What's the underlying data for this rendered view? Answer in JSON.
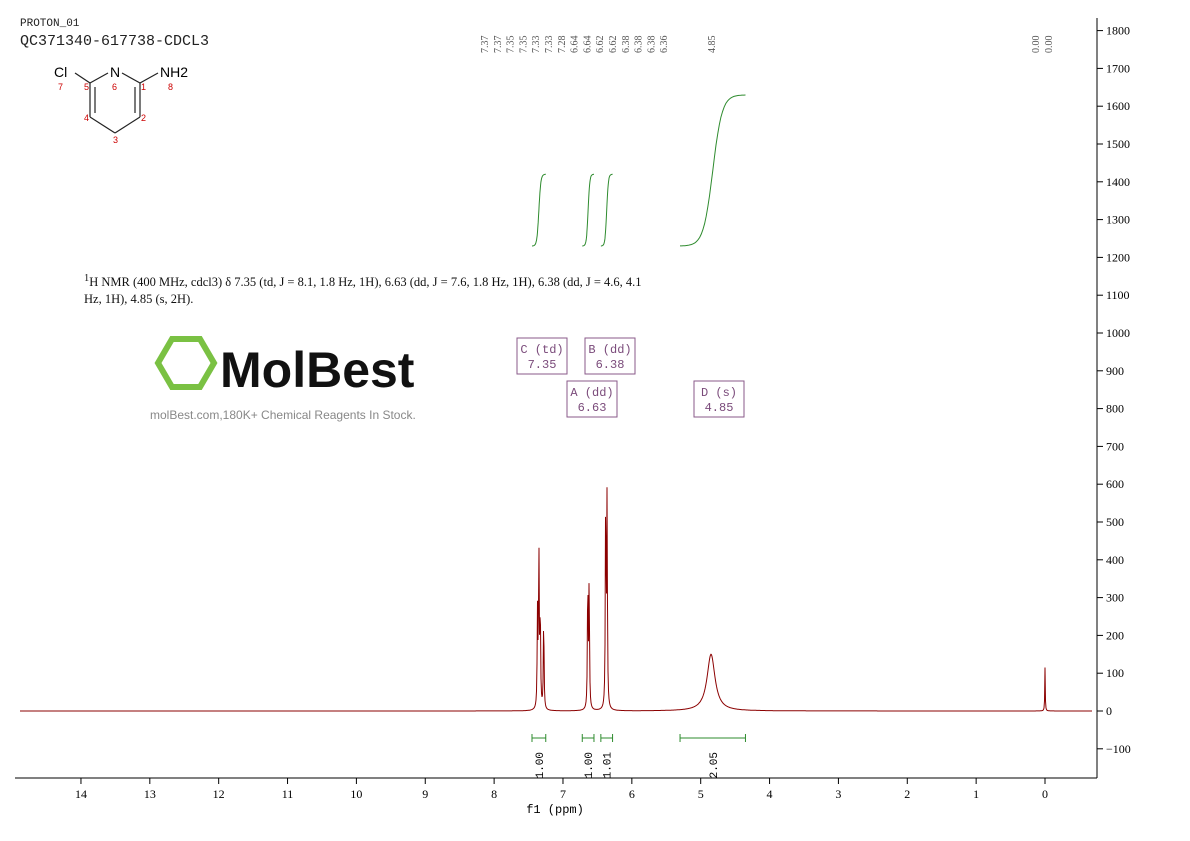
{
  "header": {
    "experiment": "PROTON_01",
    "sample": "QC371340-617738-CDCL3"
  },
  "structure": {
    "atoms": [
      {
        "label": "Cl",
        "num": "7"
      },
      {
        "label": "N",
        "num": "6"
      },
      {
        "label": "NH2",
        "num": "8"
      },
      {
        "num": "5"
      },
      {
        "num": "1"
      },
      {
        "num": "4"
      },
      {
        "num": "2"
      },
      {
        "num": "3"
      }
    ]
  },
  "description": {
    "sup": "1",
    "text": "H NMR (400 MHz, cdcl3) δ 7.35 (td, J = 8.1, 1.8 Hz, 1H), 6.63 (dd, J = 7.6, 1.8 Hz, 1H), 6.38 (dd, J = 4.6, 4.1 Hz, 1H), 4.85 (s, 2H)."
  },
  "watermark": {
    "brand": "MolBest",
    "tagline": "molBest.com,180K+ Chemical Reagents In Stock."
  },
  "chart_data": {
    "type": "line",
    "xlabel": "f1 (ppm)",
    "xlim": [
      14.9,
      -0.7
    ],
    "ylim": [
      -180,
      1830
    ],
    "xticks": [
      14,
      13,
      12,
      11,
      10,
      9,
      8,
      7,
      6,
      5,
      4,
      3,
      2,
      1,
      0
    ],
    "yticks": [
      1800,
      1700,
      1600,
      1500,
      1400,
      1300,
      1200,
      1100,
      1000,
      900,
      800,
      700,
      600,
      500,
      400,
      300,
      200,
      100,
      0,
      -100
    ],
    "peak_labels": [
      "7.37",
      "7.37",
      "7.35",
      "7.35",
      "7.33",
      "7.33",
      "7.28",
      "6.64",
      "6.64",
      "6.62",
      "6.62",
      "6.38",
      "6.38",
      "6.38",
      "6.36",
      "4.85",
      "0.00",
      "0.00"
    ],
    "peaks": [
      {
        "ppm": 7.37,
        "height": 250,
        "width": 0.006
      },
      {
        "ppm": 7.35,
        "height": 420,
        "width": 0.006
      },
      {
        "ppm": 7.33,
        "height": 260,
        "width": 0.006
      },
      {
        "ppm": 7.28,
        "height": 250,
        "width": 0.006
      },
      {
        "ppm": 6.64,
        "height": 350,
        "width": 0.006
      },
      {
        "ppm": 6.62,
        "height": 340,
        "width": 0.006
      },
      {
        "ppm": 6.38,
        "height": 560,
        "width": 0.006
      },
      {
        "ppm": 6.36,
        "height": 550,
        "width": 0.006
      },
      {
        "ppm": 4.85,
        "height": 150,
        "width": 0.07
      },
      {
        "ppm": 0.0,
        "height": 115,
        "width": 0.004
      }
    ],
    "integrals": [
      {
        "from": 7.45,
        "to": 7.25,
        "value": "1.00",
        "y0": 1230,
        "y1": 1420
      },
      {
        "from": 6.72,
        "to": 6.55,
        "value": "1.00",
        "y0": 1230,
        "y1": 1420
      },
      {
        "from": 6.45,
        "to": 6.28,
        "value": "1.01",
        "y0": 1230,
        "y1": 1420
      },
      {
        "from": 5.3,
        "to": 4.35,
        "value": "2.05",
        "y0": 1230,
        "y1": 1630
      }
    ],
    "multiplets": [
      {
        "label": "C (td)",
        "shift": "7.35"
      },
      {
        "label": "B (dd)",
        "shift": "6.38"
      },
      {
        "label": "A (dd)",
        "shift": "6.63"
      },
      {
        "label": "D (s)",
        "shift": "4.85"
      }
    ],
    "colors": {
      "spectrum": "#8b0000",
      "integral": "#2e8b2e",
      "peak_label": "#1a1a8c",
      "multiplet_box": "#8a5a8a",
      "watermark": "#7ac143"
    }
  }
}
